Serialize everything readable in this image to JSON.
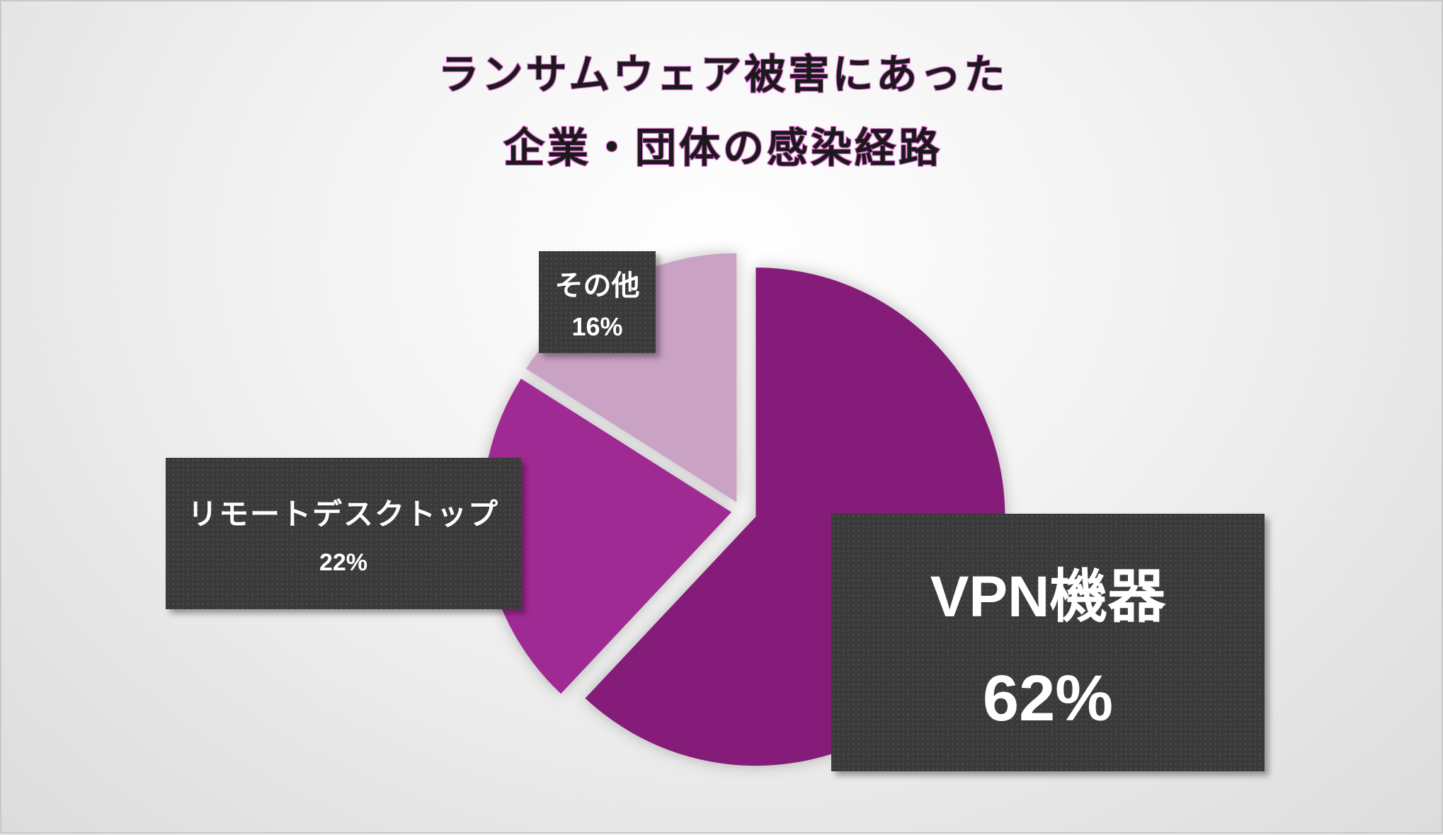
{
  "chart_data": {
    "type": "pie",
    "title_lines": [
      "ランサムウェア被害にあった",
      "企業・団体の感染経路"
    ],
    "slices": [
      {
        "label": "VPN機器",
        "value": 62,
        "percent_label": "62%",
        "color": "#851f79"
      },
      {
        "label": "リモートデスクトップ",
        "value": 22,
        "percent_label": "22%",
        "color": "#a02a93"
      },
      {
        "label": "その他",
        "value": 16,
        "percent_label": "16%",
        "color": "#c9a2c4"
      }
    ],
    "start_angle": "12 o'clock",
    "direction": "clockwise",
    "exploded": true,
    "legend": "none"
  }
}
